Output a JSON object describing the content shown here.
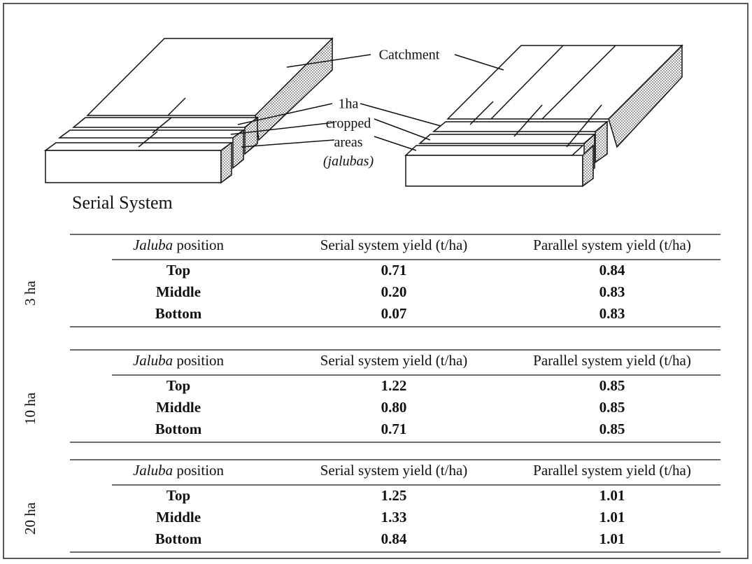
{
  "diagram": {
    "labels": [
      "Catchment",
      "1ha",
      "cropped",
      "areas",
      "(jalubas)"
    ],
    "caption": "Serial System"
  },
  "header": {
    "italic": "Jaluba",
    "rest": "position",
    "serial": "Serial system yield (t/ha)",
    "parallel": "Parallel system yield (t/ha)"
  },
  "tables": [
    {
      "size": "3 ha",
      "rows": [
        [
          "Top",
          "0.71",
          "0.84"
        ],
        [
          "Middle",
          "0.20",
          "0.83"
        ],
        [
          "Bottom",
          "0.07",
          "0.83"
        ]
      ]
    },
    {
      "size": "10 ha",
      "rows": [
        [
          "Top",
          "1.22",
          "0.85"
        ],
        [
          "Middle",
          "0.80",
          "0.85"
        ],
        [
          "Bottom",
          "0.71",
          "0.85"
        ]
      ]
    },
    {
      "size": "20 ha",
      "rows": [
        [
          "Top",
          "1.25",
          "1.01"
        ],
        [
          "Middle",
          "1.33",
          "1.01"
        ],
        [
          "Bottom",
          "0.84",
          "1.01"
        ]
      ]
    }
  ]
}
